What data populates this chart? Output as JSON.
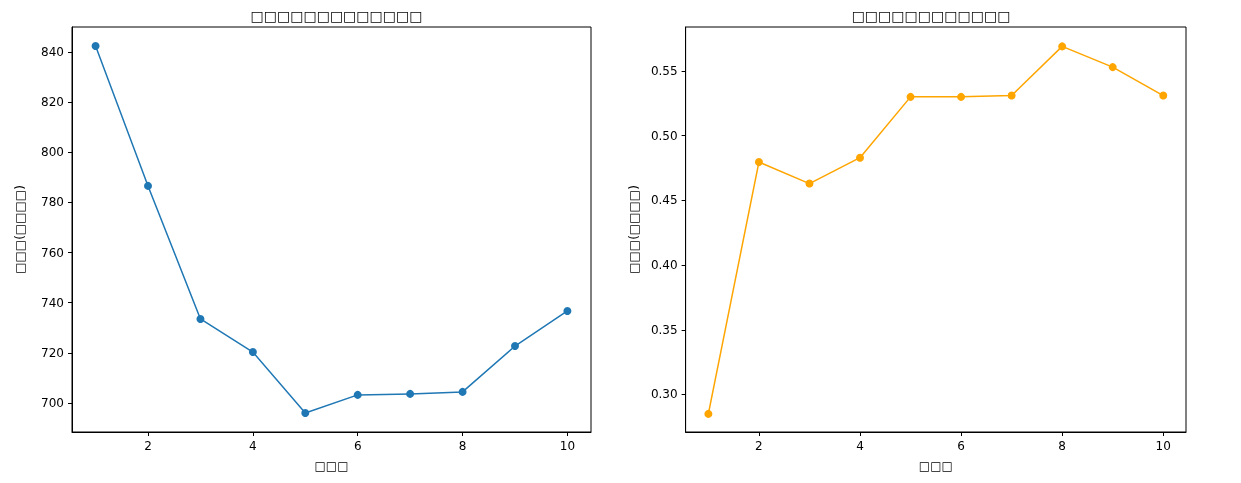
{
  "chart_data": [
    {
      "type": "line",
      "title": "□□□□□□□□□□□□□",
      "xlabel": "□□□",
      "ylabel": "□□□(□□□□)",
      "marker": "circle",
      "x": [
        1,
        2,
        3,
        4,
        5,
        6,
        7,
        8,
        9,
        10
      ],
      "series": [
        {
          "color": "#1f77b4",
          "values": [
            842.4,
            786.6,
            733.5,
            720.3,
            696.0,
            703.2,
            703.6,
            704.4,
            722.7,
            736.7
          ]
        }
      ],
      "xlim": [
        0.55,
        10.45
      ],
      "ylim": [
        688.4,
        850
      ],
      "xticks": [
        2,
        4,
        6,
        8,
        10
      ],
      "yticks": [
        700,
        720,
        740,
        760,
        780,
        800,
        820,
        840
      ]
    },
    {
      "type": "line",
      "title": "□□□□□□□□□□□□",
      "xlabel": "□□□",
      "ylabel": "□□□(□□□□)",
      "marker": "circle",
      "x": [
        1,
        2,
        3,
        4,
        5,
        6,
        7,
        8,
        9,
        10
      ],
      "series": [
        {
          "color": "#ffa500",
          "values": [
            0.285,
            0.4796,
            0.463,
            0.483,
            0.53,
            0.53,
            0.531,
            0.569,
            0.553,
            0.531
          ]
        }
      ],
      "xlim": [
        0.55,
        10.45
      ],
      "ylim": [
        0.271,
        0.584
      ],
      "xticks": [
        2,
        4,
        6,
        8,
        10
      ],
      "yticks": [
        {
          "value": 0.3,
          "label": "0.30"
        },
        {
          "value": 0.35,
          "label": "0.35"
        },
        {
          "value": 0.4,
          "label": "0.40"
        },
        {
          "value": 0.45,
          "label": "0.45"
        },
        {
          "value": 0.5,
          "label": "0.50"
        },
        {
          "value": 0.55,
          "label": "0.55"
        }
      ]
    }
  ]
}
